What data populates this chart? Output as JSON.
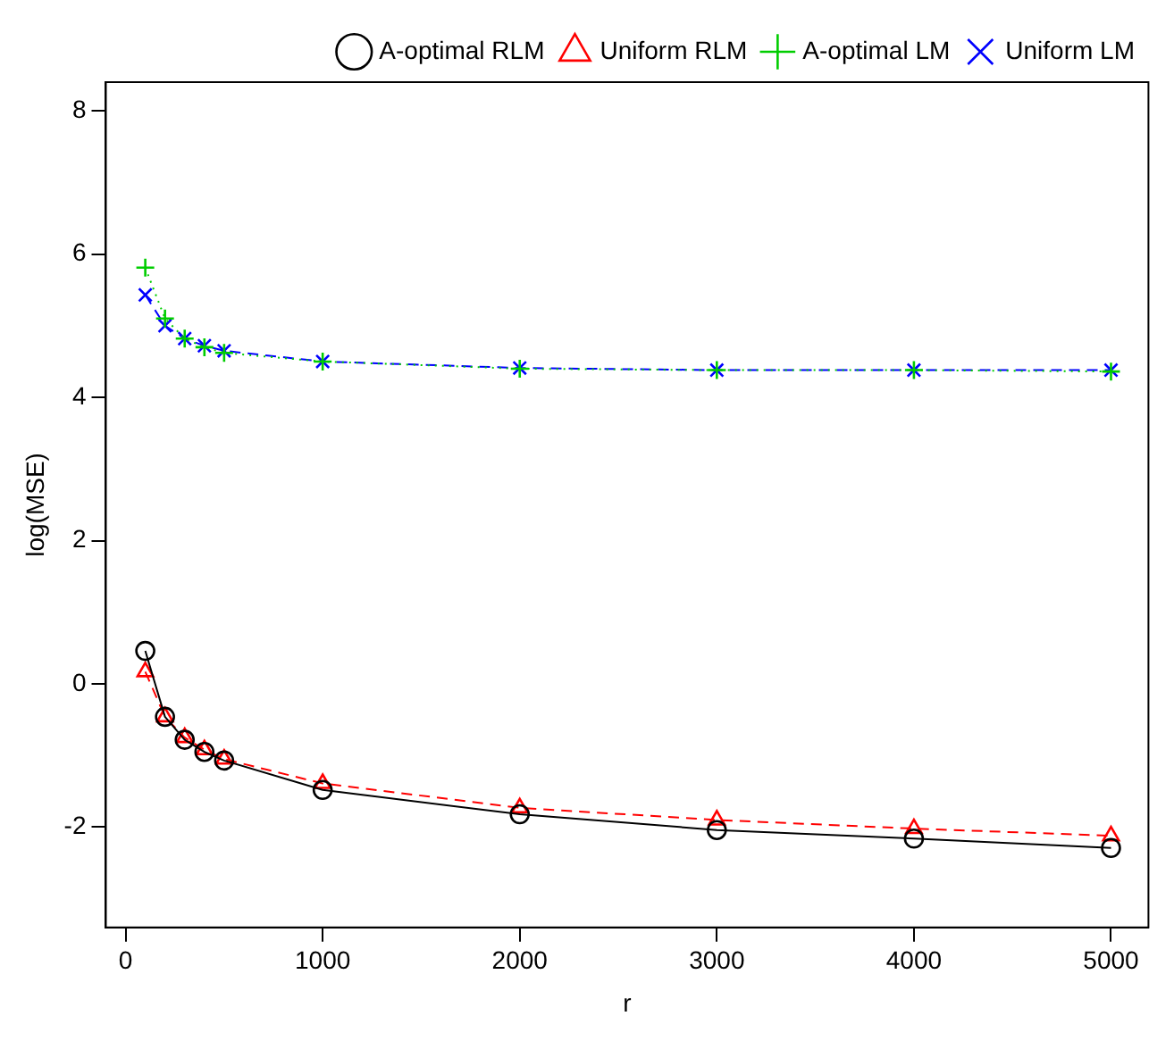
{
  "chart_data": {
    "type": "line",
    "xlabel": "r",
    "ylabel": "log(MSE)",
    "x": [
      100,
      200,
      300,
      400,
      500,
      1000,
      2000,
      3000,
      4000,
      5000
    ],
    "series": [
      {
        "name": "A-optimal RLM",
        "color": "#000000",
        "marker": "circle",
        "line_style": "solid",
        "values": [
          0.46,
          -0.46,
          -0.78,
          -0.95,
          -1.07,
          -1.48,
          -1.82,
          -2.04,
          -2.16,
          -2.29
        ]
      },
      {
        "name": "Uniform RLM",
        "color": "#ff0000",
        "marker": "triangle",
        "line_style": "dashed",
        "values": [
          0.17,
          -0.46,
          -0.75,
          -0.92,
          -1.05,
          -1.39,
          -1.73,
          -1.9,
          -2.02,
          -2.12
        ]
      },
      {
        "name": "A-optimal LM",
        "color": "#00cd00",
        "marker": "cross",
        "line_style": "dotted",
        "values": [
          5.81,
          5.1,
          4.82,
          4.7,
          4.62,
          4.5,
          4.4,
          4.38,
          4.38,
          4.36
        ]
      },
      {
        "name": "Uniform LM",
        "color": "#0000ff",
        "marker": "x",
        "line_style": "dashed",
        "values": [
          5.43,
          5.0,
          4.82,
          4.72,
          4.65,
          4.5,
          4.41,
          4.38,
          4.38,
          4.38
        ]
      }
    ],
    "xlim": [
      -100,
      5190
    ],
    "xticks": [
      0,
      1000,
      2000,
      3000,
      4000,
      5000
    ],
    "ylim": [
      -3.4,
      8.4
    ],
    "yticks": [
      -2,
      0,
      2,
      4,
      6,
      8
    ],
    "grid": false,
    "legend": "top right"
  }
}
